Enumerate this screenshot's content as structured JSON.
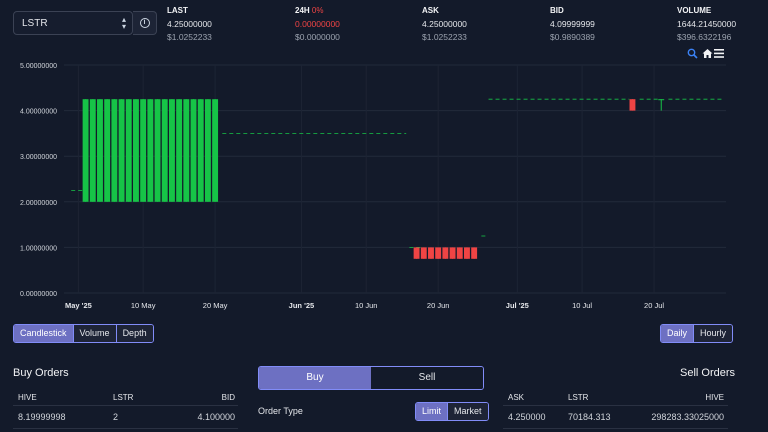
{
  "token_select": {
    "value": "LSTR"
  },
  "stats": [
    {
      "label": "LAST",
      "pct": "",
      "value": "4.25000000",
      "usd": "$1.0252233"
    },
    {
      "label": "24H",
      "pct": "0%",
      "value": "0.00000000",
      "usd": "$0.0000000"
    },
    {
      "label": "ASK",
      "pct": "",
      "value": "4.25000000",
      "usd": "$1.0252233"
    },
    {
      "label": "BID",
      "pct": "",
      "value": "4.09999999",
      "usd": "$0.9890389"
    },
    {
      "label": "VOLUME",
      "pct": "",
      "value": "1644.21450000",
      "usd": "$396.6322196"
    }
  ],
  "colors": {
    "up": "#16c447",
    "down": "#ef4444",
    "accent": "#6d70c2",
    "background": "#131a2a"
  },
  "chart_data": {
    "type": "candlestick",
    "y_ticks": [
      "5.00000000",
      "4.00000000",
      "3.00000000",
      "2.00000000",
      "1.00000000",
      "0.00000000"
    ],
    "x_ticks": [
      "May '25",
      "10 May",
      "20 May",
      "Jun '25",
      "10 Jun",
      "20 Jun",
      "Jul '25",
      "10 Jul",
      "20 Jul"
    ],
    "ylim": [
      0,
      5
    ],
    "grid": true,
    "candles": [
      {
        "date": "2025-05-02",
        "open": 2.0,
        "close": 4.25,
        "high": 4.25,
        "low": 2.0
      },
      {
        "date": "2025-05-03",
        "open": 2.0,
        "close": 4.25,
        "high": 4.25,
        "low": 2.0
      },
      {
        "date": "2025-05-04",
        "open": 2.0,
        "close": 4.25,
        "high": 4.25,
        "low": 2.0
      },
      {
        "date": "2025-05-05",
        "open": 2.0,
        "close": 4.25,
        "high": 4.25,
        "low": 2.0
      },
      {
        "date": "2025-05-06",
        "open": 2.0,
        "close": 4.25,
        "high": 4.25,
        "low": 2.0
      },
      {
        "date": "2025-05-07",
        "open": 2.0,
        "close": 4.25,
        "high": 4.25,
        "low": 2.0
      },
      {
        "date": "2025-05-08",
        "open": 2.0,
        "close": 4.25,
        "high": 4.25,
        "low": 2.0
      },
      {
        "date": "2025-05-09",
        "open": 2.0,
        "close": 4.25,
        "high": 4.25,
        "low": 2.0
      },
      {
        "date": "2025-05-10",
        "open": 2.0,
        "close": 4.25,
        "high": 4.25,
        "low": 2.0
      },
      {
        "date": "2025-05-11",
        "open": 2.0,
        "close": 4.25,
        "high": 4.25,
        "low": 2.0
      },
      {
        "date": "2025-05-12",
        "open": 2.0,
        "close": 4.25,
        "high": 4.25,
        "low": 2.0
      },
      {
        "date": "2025-05-13",
        "open": 2.0,
        "close": 4.25,
        "high": 4.25,
        "low": 2.0
      },
      {
        "date": "2025-05-14",
        "open": 2.0,
        "close": 4.25,
        "high": 4.25,
        "low": 2.0
      },
      {
        "date": "2025-05-15",
        "open": 2.0,
        "close": 4.25,
        "high": 4.25,
        "low": 2.0
      },
      {
        "date": "2025-05-16",
        "open": 2.0,
        "close": 4.25,
        "high": 4.25,
        "low": 2.0
      },
      {
        "date": "2025-05-17",
        "open": 2.0,
        "close": 4.25,
        "high": 4.25,
        "low": 2.0
      },
      {
        "date": "2025-05-18",
        "open": 2.0,
        "close": 4.25,
        "high": 4.25,
        "low": 2.0
      },
      {
        "date": "2025-05-19",
        "open": 2.0,
        "close": 4.25,
        "high": 4.25,
        "low": 2.0
      },
      {
        "date": "2025-05-20",
        "open": 2.0,
        "close": 4.25,
        "high": 4.25,
        "low": 2.0
      },
      {
        "date": "2025-06-17",
        "open": 1.0,
        "close": 0.75,
        "high": 1.0,
        "low": 0.75
      },
      {
        "date": "2025-06-18",
        "open": 1.0,
        "close": 0.75,
        "high": 1.0,
        "low": 0.75
      },
      {
        "date": "2025-06-19",
        "open": 1.0,
        "close": 0.75,
        "high": 1.0,
        "low": 0.75
      },
      {
        "date": "2025-06-20",
        "open": 1.0,
        "close": 0.75,
        "high": 1.0,
        "low": 0.75
      },
      {
        "date": "2025-06-21",
        "open": 1.0,
        "close": 0.75,
        "high": 1.0,
        "low": 0.75
      },
      {
        "date": "2025-06-22",
        "open": 1.0,
        "close": 0.75,
        "high": 1.0,
        "low": 0.75
      },
      {
        "date": "2025-06-23",
        "open": 1.0,
        "close": 0.75,
        "high": 1.0,
        "low": 0.75
      },
      {
        "date": "2025-06-24",
        "open": 1.0,
        "close": 0.75,
        "high": 1.0,
        "low": 0.75
      },
      {
        "date": "2025-06-25",
        "open": 1.0,
        "close": 0.75,
        "high": 1.0,
        "low": 0.75
      },
      {
        "date": "2025-07-17",
        "open": 4.25,
        "close": 4.0,
        "high": 4.25,
        "low": 4.0
      },
      {
        "date": "2025-07-21",
        "open": 4.25,
        "close": 4.25,
        "high": 4.25,
        "low": 4.0
      }
    ],
    "dashed_levels": [
      {
        "from": "2025-04-30",
        "to": "2025-05-01",
        "value": 2.25,
        "color": "#16c447"
      },
      {
        "from": "2025-05-21",
        "to": "2025-06-15",
        "value": 3.5,
        "color": "#16c447"
      },
      {
        "from": "2025-06-16",
        "to": "2025-06-17",
        "value": 1.0,
        "color": "#16c447"
      },
      {
        "from": "2025-06-26",
        "to": "2025-06-26",
        "value": 1.25,
        "color": "#16c447"
      },
      {
        "from": "2025-06-27",
        "to": "2025-07-16",
        "value": 4.25,
        "color": "#16c447"
      },
      {
        "from": "2025-07-18",
        "to": "2025-07-20",
        "value": 4.25,
        "color": "#16c447"
      },
      {
        "from": "2025-07-22",
        "to": "2025-07-29",
        "value": 4.25,
        "color": "#16c447"
      }
    ]
  },
  "chart_type_tabs": [
    {
      "label": "Candlestick",
      "active": true
    },
    {
      "label": "Volume",
      "active": false
    },
    {
      "label": "Depth",
      "active": false
    }
  ],
  "interval_tabs": [
    {
      "label": "Daily",
      "active": true
    },
    {
      "label": "Hourly",
      "active": false
    }
  ],
  "buy_orders": {
    "title": "Buy Orders",
    "headers": [
      "HIVE",
      "LSTR",
      "BID"
    ],
    "rows": [
      [
        "8.19999998",
        "2",
        "4.100000"
      ]
    ]
  },
  "trade_form": {
    "buy_label": "Buy",
    "sell_label": "Sell",
    "order_type_label": "Order Type",
    "limit_label": "Limit",
    "market_label": "Market"
  },
  "sell_orders": {
    "title": "Sell Orders",
    "headers": [
      "ASK",
      "LSTR",
      "HIVE"
    ],
    "rows": [
      [
        "4.250000",
        "70184.313",
        "298283.33025000"
      ]
    ]
  }
}
